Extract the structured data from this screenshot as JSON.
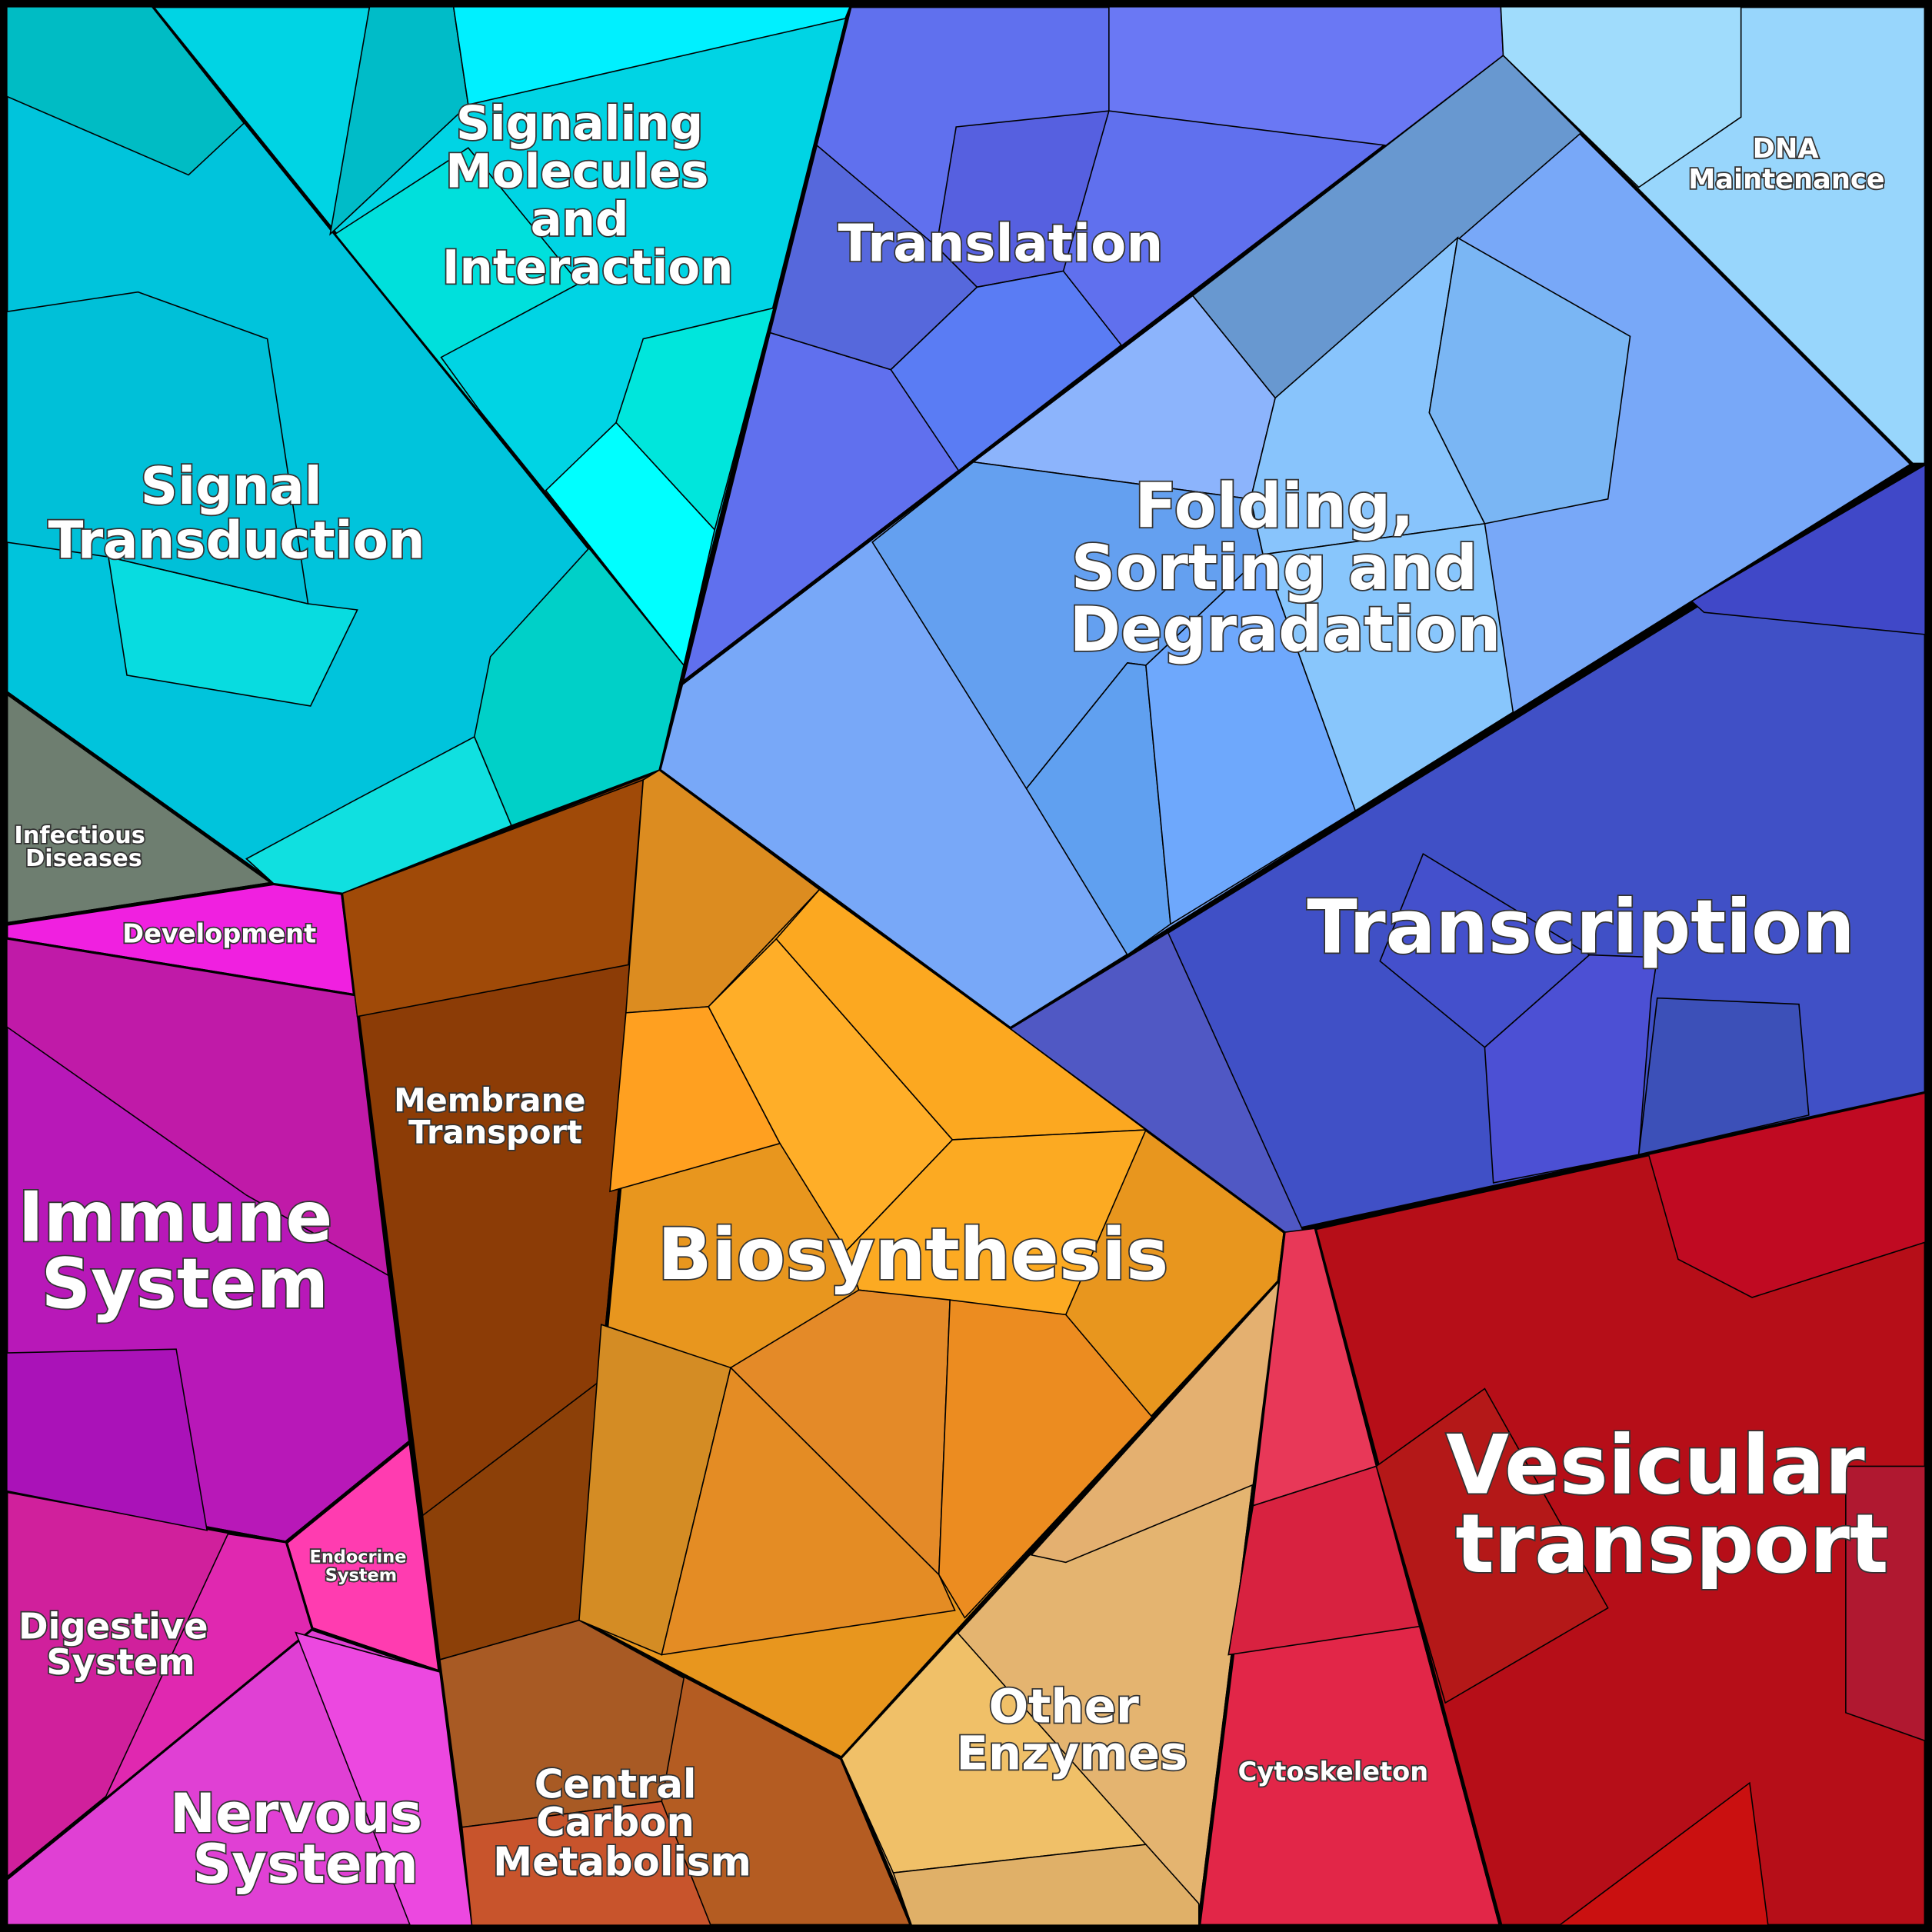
{
  "regions": {
    "signal_transduction": {
      "label_lines": [
        "Signal",
        "Transduction"
      ],
      "color": "#00c4dc"
    },
    "signaling_molecules": {
      "label_lines": [
        "Signaling",
        "Molecules",
        "and",
        "Interaction"
      ],
      "color": "#00d4e4"
    },
    "infectious_diseases": {
      "label_lines": [
        "Infectious",
        "Diseases"
      ],
      "color": "#6e7e70"
    },
    "development": {
      "label_lines": [
        "Development"
      ],
      "color": "#f020e0"
    },
    "immune_system": {
      "label_lines": [
        "Immune",
        "System"
      ],
      "color": "#b818b8"
    },
    "endocrine_system": {
      "label_lines": [
        "Endocrine",
        "System"
      ],
      "color": "#ff3cb0"
    },
    "digestive_system": {
      "label_lines": [
        "Digestive",
        "System"
      ],
      "color": "#d0209c"
    },
    "nervous_system": {
      "label_lines": [
        "Nervous",
        "System"
      ],
      "color": "#e040d4"
    },
    "membrane_transport": {
      "label_lines": [
        "Membrane",
        "Transport"
      ],
      "color": "#8c3c06"
    },
    "central_carbon_metabolism": {
      "label_lines": [
        "Central",
        "Carbon",
        "Metabolism"
      ],
      "color": "#b45c22"
    },
    "biosynthesis": {
      "label_lines": [
        "Biosynthesis"
      ],
      "color": "#e8961e"
    },
    "other_enzymes": {
      "label_lines": [
        "Other",
        "Enzymes"
      ],
      "color": "#e4b470"
    },
    "cytoskeleton": {
      "label_lines": [
        "Cytoskeleton"
      ],
      "color": "#e22648"
    },
    "vesicular_transport": {
      "label_lines": [
        "Vesicular",
        "transport"
      ],
      "color": "#b60e18"
    },
    "transcription": {
      "label_lines": [
        "Transcription"
      ],
      "color": "#4050c6"
    },
    "folding_sorting_degradation": {
      "label_lines": [
        "Folding,",
        "Sorting and",
        "Degradation"
      ],
      "color": "#78a8f8"
    },
    "dna_maintenance": {
      "label_lines": [
        "DNA",
        "Maintenance"
      ],
      "color": "#98d6fc"
    },
    "translation": {
      "label_lines": [
        "Translation"
      ],
      "color": "#6070ee"
    }
  }
}
